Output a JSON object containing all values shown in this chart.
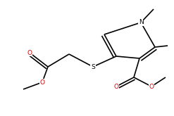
{
  "bg_color": "#ffffff",
  "line_color": "#000000",
  "atom_colors": {
    "O": "#cc0000",
    "N": "#000000",
    "S": "#000000"
  },
  "font_size": 6.5,
  "line_width": 1.2,
  "figsize": [
    2.47,
    1.65
  ],
  "dpi": 100,
  "xlim": [
    0,
    247
  ],
  "ylim": [
    0,
    165
  ]
}
